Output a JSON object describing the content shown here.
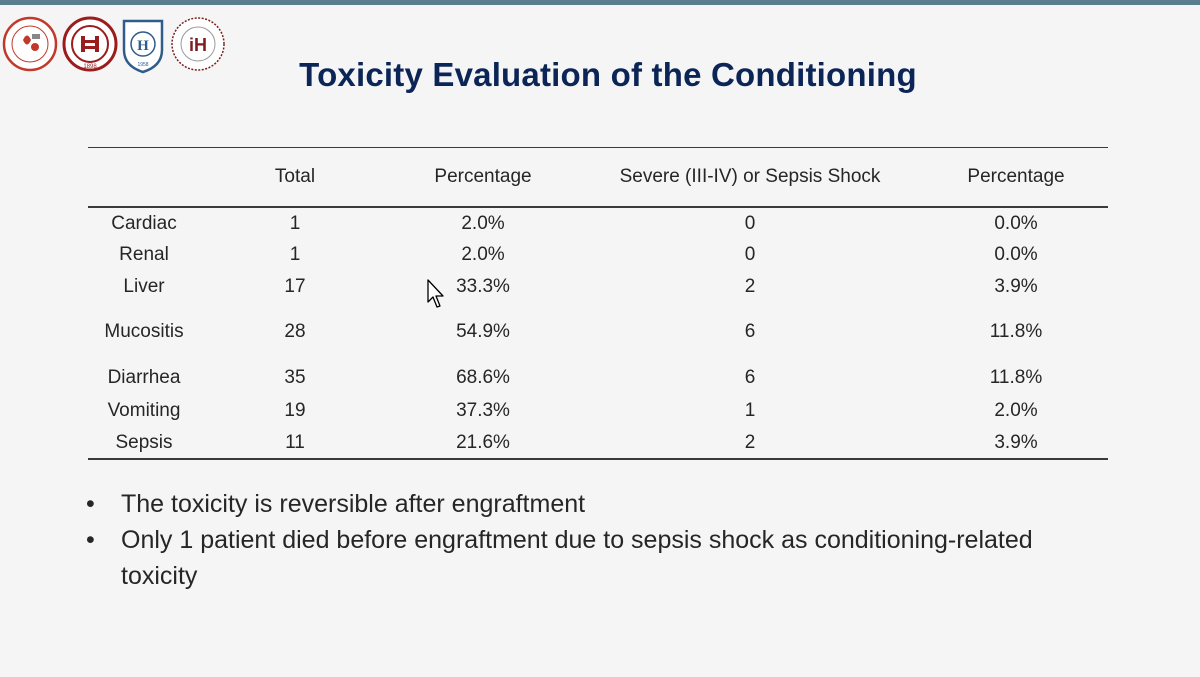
{
  "slide": {
    "title": "Toxicity Evaluation of the Conditioning",
    "logos": [
      {
        "icon": "red-hospital-seal-icon",
        "color": "#c0392b"
      },
      {
        "icon": "peking-university-seal-icon",
        "color": "#9b1c1c"
      },
      {
        "icon": "blue-university-crest-icon",
        "color": "#2f5c8a"
      },
      {
        "icon": "institute-of-hematology-seal-icon",
        "color": "#7a1f1f"
      }
    ],
    "logo_texts": {
      "peking_year": "1898",
      "crest_year": "1958",
      "crest_letter": "H",
      "ih_letters": "iH"
    },
    "table": {
      "headers": [
        "",
        "Total",
        "Percentage",
        "Severe (III-IV) or Sepsis Shock",
        "Percentage"
      ],
      "rows": [
        [
          "Cardiac",
          "1",
          "2.0%",
          "0",
          "0.0%"
        ],
        [
          "Renal",
          "1",
          "2.0%",
          "0",
          "0.0%"
        ],
        [
          "Liver",
          "17",
          "33.3%",
          "2",
          "3.9%"
        ],
        [
          "Mucositis",
          "28",
          "54.9%",
          "6",
          "11.8%"
        ],
        [
          "Diarrhea",
          "35",
          "68.6%",
          "6",
          "11.8%"
        ],
        [
          "Vomiting",
          "19",
          "37.3%",
          "1",
          "2.0%"
        ],
        [
          "Sepsis",
          "11",
          "21.6%",
          "2",
          "3.9%"
        ]
      ]
    },
    "bullets": [
      "The toxicity is reversible after engraftment",
      "Only 1 patient died before engraftment due to sepsis shock as conditioning-related toxicity"
    ],
    "colors": {
      "title": "#0c2557",
      "top_bar": "#5b7d90",
      "background": "#f5f5f5"
    }
  }
}
